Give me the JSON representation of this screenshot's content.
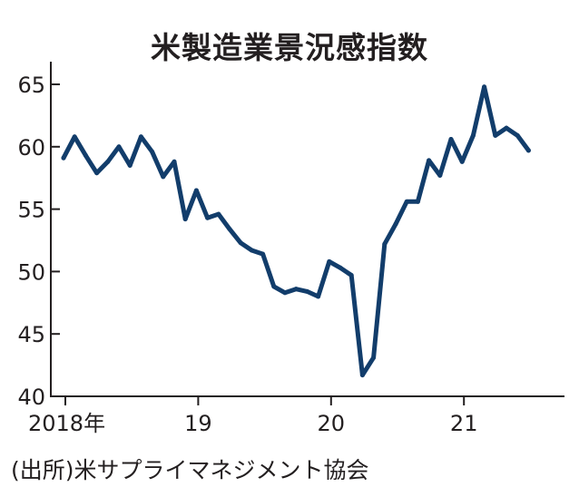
{
  "title": "米製造業景況感指数",
  "source": "(出所)米サプライマネジメント協会",
  "colors": {
    "line": "#123d6b",
    "axis": "#231f20",
    "text": "#231f20"
  },
  "chart_data": {
    "type": "line",
    "title": "米製造業景況感指数",
    "xlabel": "",
    "ylabel": "",
    "ylim": [
      40,
      65
    ],
    "yticks": [
      40,
      45,
      50,
      55,
      60,
      65
    ],
    "grid": false,
    "xtick_labels": [
      {
        "index": 0,
        "label": "2018年"
      },
      {
        "index": 12,
        "label": "19"
      },
      {
        "index": 24,
        "label": "20"
      },
      {
        "index": 36,
        "label": "21"
      }
    ],
    "x": [
      "2018-01",
      "2018-02",
      "2018-03",
      "2018-04",
      "2018-05",
      "2018-06",
      "2018-07",
      "2018-08",
      "2018-09",
      "2018-10",
      "2018-11",
      "2018-12",
      "2019-01",
      "2019-02",
      "2019-03",
      "2019-04",
      "2019-05",
      "2019-06",
      "2019-07",
      "2019-08",
      "2019-09",
      "2019-10",
      "2019-11",
      "2019-12",
      "2020-01",
      "2020-02",
      "2020-03",
      "2020-04",
      "2020-05",
      "2020-06",
      "2020-07",
      "2020-08",
      "2020-09",
      "2020-10",
      "2020-11",
      "2020-12",
      "2021-01",
      "2021-02",
      "2021-03",
      "2021-04",
      "2021-05",
      "2021-06",
      "2021-07"
    ],
    "series": [
      {
        "values": [
          59.1,
          60.8,
          59.3,
          57.9,
          58.8,
          60.0,
          58.5,
          60.8,
          59.6,
          57.6,
          58.8,
          54.2,
          56.5,
          54.3,
          54.6,
          53.4,
          52.3,
          51.7,
          51.4,
          48.8,
          48.3,
          48.6,
          48.4,
          48.0,
          50.8,
          50.3,
          49.7,
          41.7,
          43.1,
          52.2,
          53.8,
          55.6,
          55.6,
          58.9,
          57.7,
          60.6,
          58.8,
          60.9,
          64.8,
          60.9,
          61.5,
          60.9,
          59.7
        ]
      }
    ]
  }
}
